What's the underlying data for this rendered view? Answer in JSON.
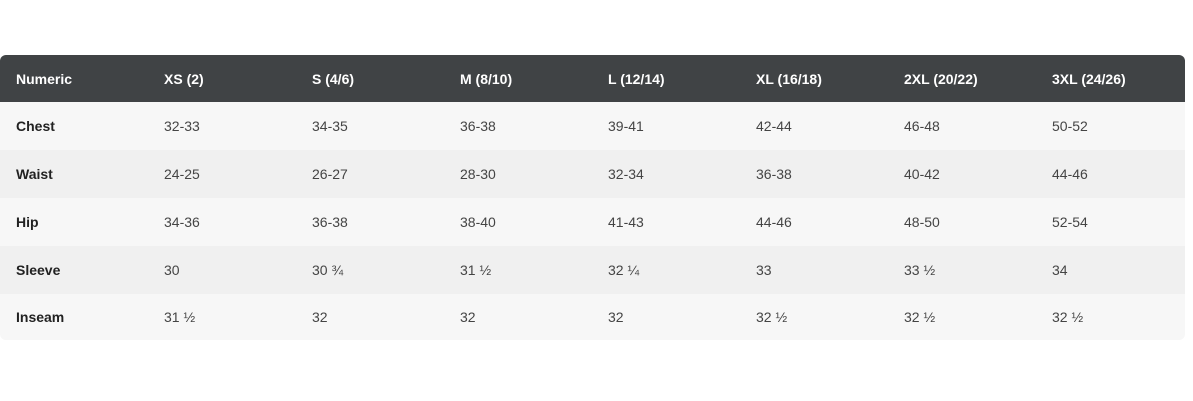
{
  "size_chart": {
    "headers": [
      "Numeric",
      "XS (2)",
      "S (4/6)",
      "M (8/10)",
      "L (12/14)",
      "XL (16/18)",
      "2XL (20/22)",
      "3XL (24/26)"
    ],
    "rows": [
      {
        "label": "Chest",
        "values": [
          "32-33",
          "34-35",
          "36-38",
          "39-41",
          "42-44",
          "46-48",
          "50-52"
        ]
      },
      {
        "label": "Waist",
        "values": [
          "24-25",
          "26-27",
          "28-30",
          "32-34",
          "36-38",
          "40-42",
          "44-46"
        ]
      },
      {
        "label": "Hip",
        "values": [
          "34-36",
          "36-38",
          "38-40",
          "41-43",
          "44-46",
          "48-50",
          "52-54"
        ]
      },
      {
        "label": "Sleeve",
        "values": [
          "30",
          "30 ¾",
          "31 ½",
          "32 ¼",
          "33",
          "33 ½",
          "34"
        ]
      },
      {
        "label": "Inseam",
        "values": [
          "31 ½",
          "32",
          "32",
          "32",
          "32 ½",
          "32 ½",
          "32 ½"
        ]
      }
    ],
    "colors": {
      "header_bg": "#404345",
      "header_text": "#ffffff",
      "row_odd_bg": "#f7f7f7",
      "row_even_bg": "#f0f0f0"
    }
  }
}
